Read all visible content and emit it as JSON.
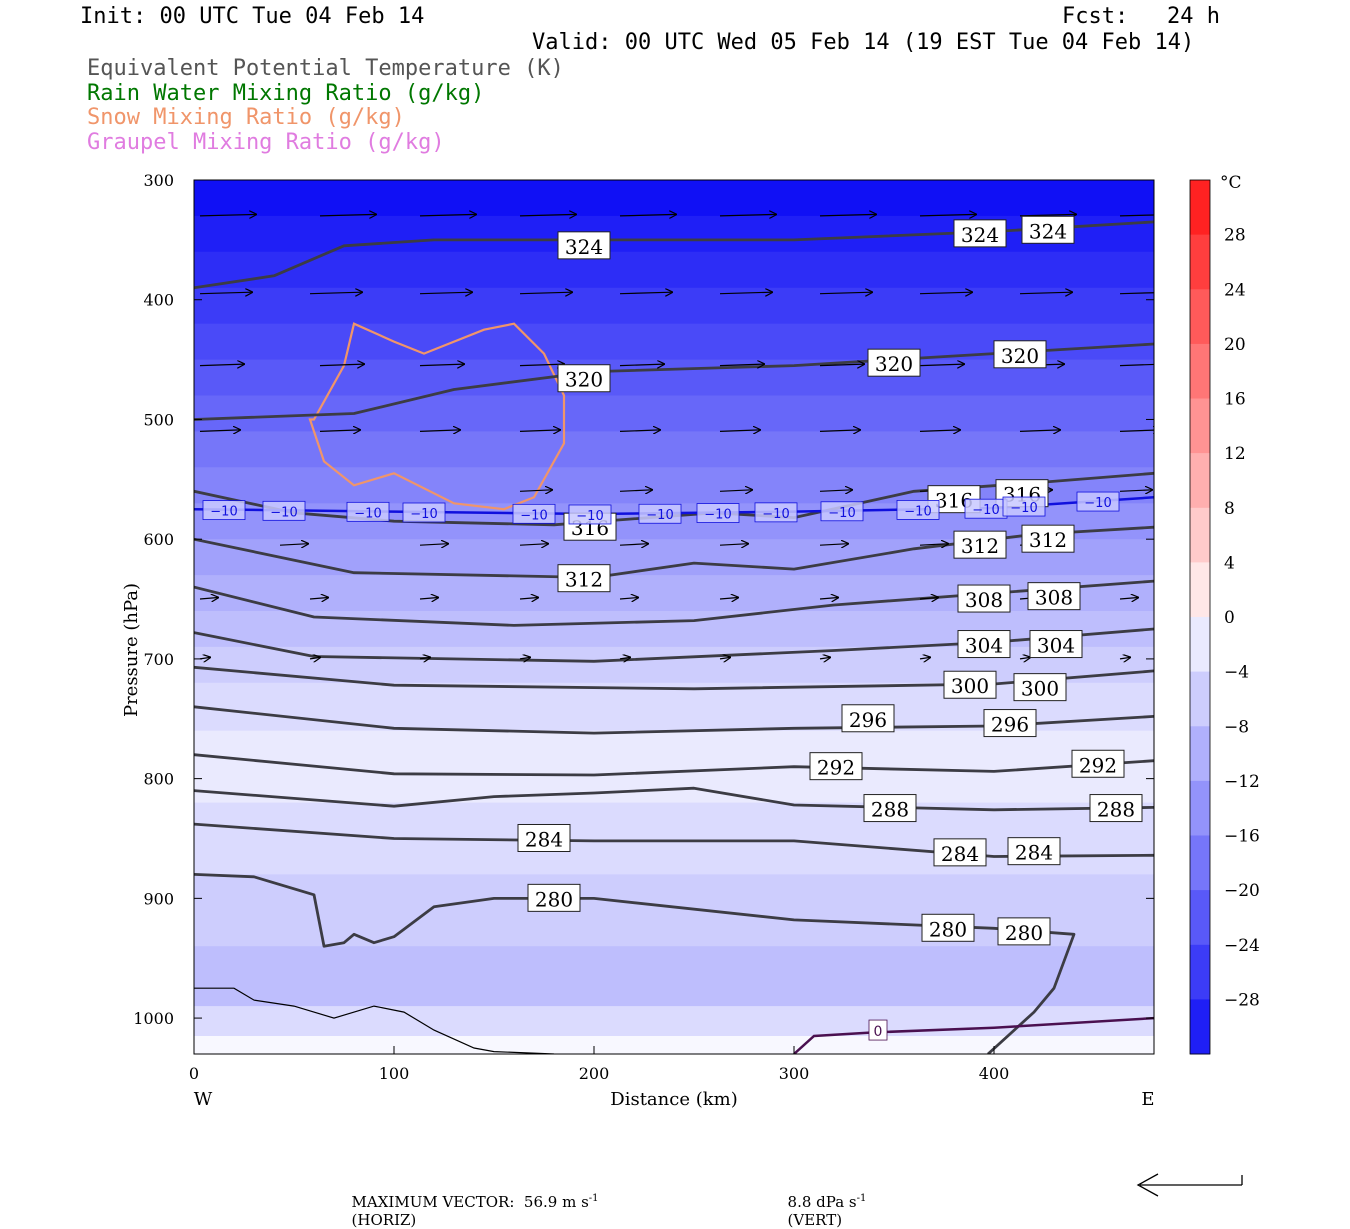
{
  "header": {
    "init": "Init: 00 UTC Tue 04 Feb 14",
    "fcst_label": "Fcst:",
    "fcst_value": "24 h",
    "valid": "Valid: 00 UTC Wed 05 Feb 14 (19 EST Tue 04 Feb 14)"
  },
  "legend": [
    {
      "label": "Equivalent Potential Temperature (K)",
      "color": "#555555"
    },
    {
      "label": "Rain Water Mixing Ratio (g/kg)",
      "color": "#007700"
    },
    {
      "label": "Snow Mixing Ratio (g/kg)",
      "color": "#f0956a"
    },
    {
      "label": "Graupel Mixing Ratio (g/kg)",
      "color": "#e07ce0"
    }
  ],
  "axes": {
    "ylabel": "Pressure (hPa)",
    "xlabel": "Distance (km)",
    "west": "W",
    "east": "E",
    "y_ticks": [
      "300",
      "400",
      "500",
      "600",
      "700",
      "800",
      "900",
      "1000"
    ],
    "x_ticks": [
      "0",
      "100",
      "200",
      "300",
      "400"
    ]
  },
  "colorbar": {
    "unit": "°C",
    "labels": [
      "28",
      "24",
      "20",
      "16",
      "12",
      "8",
      "4",
      "0",
      "−4",
      "−8",
      "−12",
      "−16",
      "−20",
      "−24",
      "−28"
    ]
  },
  "footer": {
    "max_vector": "MAXIMUM VECTOR:  56.9 m s",
    "horiz": "(HORIZ)",
    "vert": "8.8 dPa s",
    "vert_tag": "(VERT)",
    "exp": "-1"
  },
  "chart_data": {
    "type": "cross-section",
    "x_range_km": [
      0,
      480
    ],
    "p_range_hpa": [
      300,
      1030
    ],
    "colors": {
      "theta_e": "#3c3c44",
      "snow": "#f0956a",
      "iso_minus10": "#1010dd",
      "freezing": "#4a1050"
    },
    "temperature_shading_bands": [
      {
        "p": 300,
        "t": -32
      },
      {
        "p": 330,
        "t": -30
      },
      {
        "p": 360,
        "t": -28
      },
      {
        "p": 390,
        "t": -26
      },
      {
        "p": 420,
        "t": -24
      },
      {
        "p": 450,
        "t": -22
      },
      {
        "p": 480,
        "t": -20
      },
      {
        "p": 510,
        "t": -18
      },
      {
        "p": 540,
        "t": -16
      },
      {
        "p": 570,
        "t": -14
      },
      {
        "p": 600,
        "t": -12
      },
      {
        "p": 630,
        "t": -10
      },
      {
        "p": 660,
        "t": -8
      },
      {
        "p": 690,
        "t": -6
      },
      {
        "p": 720,
        "t": -4
      },
      {
        "p": 760,
        "t": -2
      },
      {
        "p": 820,
        "t": -4
      },
      {
        "p": 880,
        "t": -6
      },
      {
        "p": 940,
        "t": -8
      },
      {
        "p": 990,
        "t": -4
      },
      {
        "p": 1015,
        "t": 0
      }
    ],
    "theta_e_contours": [
      {
        "value": 324,
        "points": [
          [
            0,
            390
          ],
          [
            40,
            380
          ],
          [
            75,
            355
          ],
          [
            120,
            350
          ],
          [
            200,
            350
          ],
          [
            300,
            350
          ],
          [
            400,
            343
          ],
          [
            480,
            335
          ]
        ],
        "labels": [
          [
            195,
            355
          ],
          [
            393,
            345
          ],
          [
            427,
            342
          ]
        ]
      },
      {
        "value": 320,
        "points": [
          [
            0,
            500
          ],
          [
            80,
            495
          ],
          [
            130,
            475
          ],
          [
            200,
            460
          ],
          [
            300,
            455
          ],
          [
            400,
            445
          ],
          [
            480,
            437
          ]
        ],
        "labels": [
          [
            195,
            466
          ],
          [
            350,
            453
          ],
          [
            413,
            446
          ]
        ]
      },
      {
        "value": 316,
        "points": [
          [
            0,
            560
          ],
          [
            50,
            578
          ],
          [
            100,
            585
          ],
          [
            180,
            588
          ],
          [
            260,
            578
          ],
          [
            300,
            582
          ],
          [
            360,
            560
          ],
          [
            420,
            553
          ],
          [
            480,
            545
          ]
        ],
        "labels": [
          [
            198,
            590
          ],
          [
            380,
            567
          ],
          [
            414,
            562
          ]
        ]
      },
      {
        "value": 312,
        "points": [
          [
            0,
            600
          ],
          [
            80,
            628
          ],
          [
            200,
            632
          ],
          [
            250,
            620
          ],
          [
            300,
            625
          ],
          [
            360,
            608
          ],
          [
            420,
            596
          ],
          [
            480,
            590
          ]
        ],
        "labels": [
          [
            195,
            633
          ],
          [
            393,
            605
          ],
          [
            427,
            600
          ]
        ]
      },
      {
        "value": 308,
        "points": [
          [
            0,
            640
          ],
          [
            60,
            665
          ],
          [
            160,
            672
          ],
          [
            250,
            668
          ],
          [
            320,
            655
          ],
          [
            400,
            645
          ],
          [
            480,
            635
          ]
        ],
        "labels": [
          [
            395,
            650
          ],
          [
            430,
            648
          ]
        ]
      },
      {
        "value": 304,
        "points": [
          [
            0,
            678
          ],
          [
            60,
            698
          ],
          [
            200,
            702
          ],
          [
            320,
            693
          ],
          [
            400,
            686
          ],
          [
            480,
            675
          ]
        ],
        "labels": [
          [
            395,
            688
          ],
          [
            431,
            688
          ]
        ]
      },
      {
        "value": 300,
        "points": [
          [
            0,
            707
          ],
          [
            100,
            722
          ],
          [
            250,
            725
          ],
          [
            400,
            721
          ],
          [
            480,
            710
          ]
        ],
        "labels": [
          [
            388,
            722
          ],
          [
            423,
            724
          ]
        ]
      },
      {
        "value": 296,
        "points": [
          [
            0,
            740
          ],
          [
            100,
            758
          ],
          [
            200,
            762
          ],
          [
            300,
            758
          ],
          [
            400,
            756
          ],
          [
            480,
            748
          ]
        ],
        "labels": [
          [
            337,
            750
          ],
          [
            408,
            754
          ]
        ]
      },
      {
        "value": 292,
        "points": [
          [
            0,
            780
          ],
          [
            100,
            796
          ],
          [
            200,
            797
          ],
          [
            300,
            790
          ],
          [
            400,
            794
          ],
          [
            480,
            785
          ]
        ],
        "labels": [
          [
            321,
            790
          ],
          [
            452,
            788
          ]
        ]
      },
      {
        "value": 288,
        "points": [
          [
            0,
            810
          ],
          [
            100,
            823
          ],
          [
            150,
            815
          ],
          [
            200,
            812
          ],
          [
            250,
            808
          ],
          [
            300,
            822
          ],
          [
            400,
            826
          ],
          [
            480,
            824
          ]
        ],
        "labels": [
          [
            348,
            825
          ],
          [
            461,
            825
          ]
        ]
      },
      {
        "value": 284,
        "points": [
          [
            0,
            838
          ],
          [
            100,
            850
          ],
          [
            200,
            852
          ],
          [
            300,
            852
          ],
          [
            400,
            865
          ],
          [
            480,
            864
          ]
        ],
        "labels": [
          [
            175,
            850
          ],
          [
            383,
            862
          ],
          [
            420,
            861
          ]
        ]
      },
      {
        "value": 280,
        "points": [
          [
            0,
            880
          ],
          [
            30,
            882
          ],
          [
            60,
            897
          ],
          [
            65,
            940
          ],
          [
            75,
            937
          ],
          [
            80,
            930
          ],
          [
            90,
            937
          ],
          [
            100,
            932
          ],
          [
            120,
            907
          ],
          [
            150,
            900
          ],
          [
            200,
            900
          ],
          [
            300,
            918
          ],
          [
            400,
            925
          ],
          [
            440,
            930
          ],
          [
            430,
            975
          ],
          [
            420,
            995
          ],
          [
            397,
            1030
          ]
        ],
        "labels": [
          [
            180,
            900
          ],
          [
            377,
            925
          ],
          [
            415,
            928
          ]
        ]
      }
    ],
    "minus10_isotherm": {
      "points": [
        [
          0,
          575
        ],
        [
          100,
          577
        ],
        [
          200,
          579
        ],
        [
          300,
          577
        ],
        [
          400,
          574
        ],
        [
          480,
          565
        ]
      ],
      "label": "−10",
      "labels_x": [
        15,
        45,
        87,
        115,
        170,
        198,
        233,
        262,
        291,
        324,
        362,
        396,
        415,
        452
      ]
    },
    "freezing_line": {
      "points": [
        [
          300,
          1030
        ],
        [
          310,
          1015
        ],
        [
          340,
          1012
        ],
        [
          400,
          1008
        ],
        [
          480,
          1000
        ]
      ],
      "label": "0",
      "label_at": [
        342,
        1010
      ]
    },
    "ground_line": [
      [
        0,
        975
      ],
      [
        20,
        975
      ],
      [
        30,
        985
      ],
      [
        50,
        990
      ],
      [
        70,
        1000
      ],
      [
        90,
        990
      ],
      [
        105,
        995
      ],
      [
        120,
        1010
      ],
      [
        140,
        1025
      ],
      [
        150,
        1028
      ],
      [
        180,
        1030
      ]
    ],
    "snow_contour": [
      [
        60,
        500
      ],
      [
        75,
        455
      ],
      [
        80,
        420
      ],
      [
        100,
        435
      ],
      [
        115,
        445
      ],
      [
        145,
        425
      ],
      [
        160,
        420
      ],
      [
        175,
        445
      ],
      [
        185,
        480
      ],
      [
        185,
        520
      ],
      [
        170,
        565
      ],
      [
        155,
        575
      ],
      [
        130,
        570
      ],
      [
        100,
        545
      ],
      [
        80,
        555
      ],
      [
        65,
        535
      ],
      [
        58,
        500
      ]
    ],
    "wind_vector_rows": [
      {
        "p": 330,
        "x": [
          0,
          60,
          110,
          160,
          210,
          260,
          310,
          360,
          410,
          460
        ],
        "len": 28
      },
      {
        "p": 395,
        "x": [
          0,
          55,
          110,
          160,
          210,
          260,
          310,
          360,
          410,
          460
        ],
        "len": 26
      },
      {
        "p": 455,
        "x": [
          0,
          60,
          110,
          160,
          210,
          260,
          310,
          360,
          410,
          460
        ],
        "len": 22
      },
      {
        "p": 510,
        "x": [
          0,
          60,
          110,
          160,
          210,
          260,
          310,
          360,
          410,
          460
        ],
        "len": 20
      },
      {
        "p": 560,
        "x": [
          160,
          210,
          260,
          310,
          360,
          410,
          460
        ],
        "len": 16
      },
      {
        "p": 605,
        "x": [
          40,
          110,
          160,
          210,
          260,
          310,
          360,
          410
        ],
        "len": 14
      },
      {
        "p": 650,
        "x": [
          0,
          55,
          110,
          160,
          210,
          260,
          310,
          360,
          410,
          460
        ],
        "len": 9
      },
      {
        "p": 700,
        "x": [
          0,
          55,
          110,
          160,
          210,
          260,
          310,
          360,
          410,
          460
        ],
        "len": 5
      }
    ]
  }
}
